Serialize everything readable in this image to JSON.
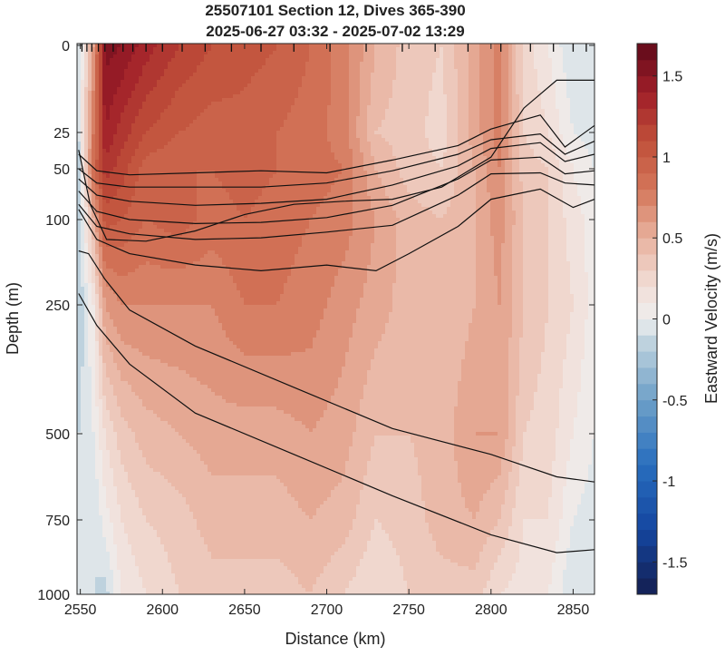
{
  "chart_data": {
    "type": "heatmap",
    "title": "25507101 Section 12, Dives 365-390",
    "subtitle": "2025-06-27 03:32 - 2025-07-02 13:29",
    "xlabel": "Distance (km)",
    "ylabel": "Depth (m)",
    "colorbar_label": "Eastward Velocity (m/s)",
    "xlim": [
      2548,
      2863
    ],
    "x_ticks": [
      2550,
      2600,
      2650,
      2700,
      2750,
      2800,
      2850
    ],
    "y_scale": "piecewise (stretched upper ocean)",
    "y_ticks": [
      0,
      25,
      50,
      100,
      250,
      500,
      750,
      1000
    ],
    "y_tick_labels": [
      "0",
      "25",
      "50",
      "100",
      "250",
      "500",
      "750",
      "1000"
    ],
    "clim": [
      -1.7,
      1.7
    ],
    "colorbar_ticks": [
      1.5,
      1,
      0.5,
      0,
      -0.5,
      -1,
      -1.5
    ],
    "colorbar_tick_labels": [
      "1.5",
      "1",
      "0.5",
      "0",
      "-0.5",
      "-1",
      "-1.5"
    ],
    "dive_marks_km": [
      2551,
      2554,
      2557,
      2561,
      2565,
      2570,
      2576,
      2582,
      2590,
      2600,
      2612,
      2626,
      2642,
      2660,
      2680,
      2702,
      2724,
      2746,
      2766,
      2786,
      2806,
      2824,
      2838,
      2850,
      2858
    ],
    "velocity_columns": [
      {
        "x": 2549,
        "depth": [
          0,
          25,
          50,
          100,
          250,
          500,
          750,
          1000
        ],
        "value": [
          -0.1,
          -0.1,
          -0.15,
          -0.2,
          -0.2,
          -0.1,
          -0.1,
          -0.1
        ]
      },
      {
        "x": 2558,
        "depth": [
          0,
          25,
          50,
          100,
          250,
          500,
          750,
          1000
        ],
        "value": [
          0.6,
          0.8,
          0.9,
          0.5,
          0.1,
          0.0,
          -0.1,
          -0.1
        ]
      },
      {
        "x": 2565,
        "depth": [
          0,
          25,
          50,
          100,
          250,
          500,
          750,
          1000
        ],
        "value": [
          1.55,
          1.4,
          1.25,
          1.05,
          0.6,
          0.2,
          0.05,
          -0.15
        ]
      },
      {
        "x": 2575,
        "depth": [
          0,
          25,
          50,
          100,
          250,
          500,
          750,
          1000
        ],
        "value": [
          1.5,
          1.25,
          1.15,
          1.0,
          0.7,
          0.35,
          0.2,
          0.1
        ]
      },
      {
        "x": 2590,
        "depth": [
          0,
          25,
          50,
          100,
          250,
          500,
          750,
          1000
        ],
        "value": [
          1.35,
          1.1,
          0.95,
          0.9,
          0.7,
          0.45,
          0.3,
          0.2
        ]
      },
      {
        "x": 2610,
        "depth": [
          0,
          25,
          50,
          100,
          250,
          500,
          750,
          1000
        ],
        "value": [
          1.2,
          1.0,
          0.9,
          0.95,
          0.7,
          0.5,
          0.35,
          0.3
        ]
      },
      {
        "x": 2630,
        "depth": [
          0,
          25,
          50,
          100,
          250,
          500,
          750,
          1000
        ],
        "value": [
          1.1,
          0.95,
          0.9,
          0.85,
          0.7,
          0.55,
          0.45,
          0.35
        ]
      },
      {
        "x": 2650,
        "depth": [
          0,
          25,
          50,
          100,
          250,
          500,
          750,
          1000
        ],
        "value": [
          1.05,
          0.95,
          0.95,
          0.9,
          0.8,
          0.55,
          0.45,
          0.35
        ]
      },
      {
        "x": 2670,
        "depth": [
          0,
          25,
          50,
          100,
          250,
          500,
          750,
          1000
        ],
        "value": [
          1.0,
          0.9,
          0.9,
          0.85,
          0.8,
          0.55,
          0.45,
          0.35
        ]
      },
      {
        "x": 2690,
        "depth": [
          0,
          25,
          50,
          100,
          250,
          500,
          750,
          1000
        ],
        "value": [
          0.9,
          0.85,
          0.85,
          0.8,
          0.75,
          0.6,
          0.5,
          0.4
        ]
      },
      {
        "x": 2710,
        "depth": [
          0,
          25,
          50,
          100,
          250,
          500,
          750,
          1000
        ],
        "value": [
          0.75,
          0.75,
          0.8,
          0.75,
          0.65,
          0.55,
          0.45,
          0.3
        ]
      },
      {
        "x": 2730,
        "depth": [
          0,
          25,
          50,
          100,
          250,
          500,
          750,
          1000
        ],
        "value": [
          0.5,
          0.4,
          0.5,
          0.6,
          0.55,
          0.4,
          0.3,
          0.2
        ]
      },
      {
        "x": 2750,
        "depth": [
          0,
          25,
          50,
          100,
          250,
          500,
          750,
          1000
        ],
        "value": [
          0.35,
          0.35,
          0.35,
          0.45,
          0.45,
          0.4,
          0.35,
          0.3
        ]
      },
      {
        "x": 2770,
        "depth": [
          0,
          25,
          50,
          100,
          250,
          500,
          750,
          1000
        ],
        "value": [
          0.3,
          0.25,
          0.3,
          0.4,
          0.4,
          0.45,
          0.45,
          0.35
        ]
      },
      {
        "x": 2790,
        "depth": [
          0,
          25,
          50,
          100,
          250,
          500,
          750,
          1000
        ],
        "value": [
          0.55,
          0.55,
          0.5,
          0.5,
          0.5,
          0.6,
          0.5,
          0.35
        ]
      },
      {
        "x": 2805,
        "depth": [
          0,
          25,
          50,
          100,
          250,
          500,
          750,
          1000
        ],
        "value": [
          0.75,
          0.75,
          0.7,
          0.65,
          0.6,
          0.6,
          0.4,
          0.2
        ]
      },
      {
        "x": 2820,
        "depth": [
          0,
          25,
          50,
          100,
          250,
          500,
          750,
          1000
        ],
        "value": [
          0.25,
          0.3,
          0.35,
          0.4,
          0.4,
          0.3,
          0.2,
          0.15
        ]
      },
      {
        "x": 2835,
        "depth": [
          0,
          25,
          50,
          100,
          250,
          500,
          750,
          1000
        ],
        "value": [
          0.1,
          0.2,
          0.3,
          0.3,
          0.3,
          0.25,
          0.2,
          0.1
        ]
      },
      {
        "x": 2850,
        "depth": [
          0,
          25,
          50,
          100,
          250,
          500,
          750,
          1000
        ],
        "value": [
          -0.1,
          0.0,
          0.1,
          0.15,
          0.2,
          0.1,
          0.0,
          -0.1
        ]
      },
      {
        "x": 2863,
        "depth": [
          0,
          25,
          50,
          100,
          250,
          500,
          750,
          1000
        ],
        "value": [
          -0.1,
          -0.05,
          0.0,
          0.05,
          0.05,
          0.0,
          -0.05,
          -0.1
        ]
      }
    ],
    "density_contours": [
      {
        "x": [
          2549,
          2556,
          2566,
          2590,
          2620,
          2650,
          2680,
          2710,
          2740,
          2770,
          2800,
          2820,
          2840,
          2850,
          2863
        ],
        "depth": [
          37,
          85,
          135,
          138,
          120,
          95,
          85,
          82,
          80,
          68,
          42,
          18,
          10,
          10,
          10
        ]
      },
      {
        "x": [
          2549,
          2560,
          2580,
          2620,
          2660,
          2700,
          2740,
          2780,
          2800,
          2830,
          2845,
          2863
        ],
        "depth": [
          40,
          52,
          56,
          54,
          52,
          54,
          44,
          34,
          24,
          20,
          35,
          23
        ]
      },
      {
        "x": [
          2549,
          2560,
          2580,
          2620,
          2660,
          2700,
          2740,
          2780,
          2800,
          2830,
          2845,
          2863
        ],
        "depth": [
          50,
          64,
          68,
          68,
          68,
          64,
          52,
          40,
          30,
          26,
          40,
          31
        ]
      },
      {
        "x": [
          2549,
          2560,
          2580,
          2620,
          2660,
          2700,
          2740,
          2780,
          2800,
          2830,
          2845,
          2863
        ],
        "depth": [
          60,
          76,
          82,
          86,
          84,
          80,
          66,
          48,
          36,
          32,
          45,
          40
        ]
      },
      {
        "x": [
          2549,
          2560,
          2580,
          2620,
          2660,
          2700,
          2740,
          2780,
          2800,
          2830,
          2845,
          2863
        ],
        "depth": [
          72,
          92,
          100,
          107,
          105,
          98,
          86,
          60,
          44,
          42,
          55,
          52
        ]
      },
      {
        "x": [
          2549,
          2560,
          2580,
          2620,
          2660,
          2700,
          2740,
          2780,
          2800,
          2830,
          2845,
          2863
        ],
        "depth": [
          85,
          112,
          125,
          135,
          132,
          122,
          110,
          76,
          55,
          54,
          64,
          66
        ]
      },
      {
        "x": [
          2549,
          2560,
          2580,
          2620,
          2660,
          2700,
          2730,
          2750,
          2780,
          2800,
          2830,
          2850,
          2863
        ],
        "depth": [
          90,
          135,
          160,
          180,
          190,
          180,
          190,
          160,
          112,
          80,
          70,
          88,
          80
        ]
      },
      {
        "x": [
          2549,
          2555,
          2565,
          2580,
          2620,
          2680,
          2740,
          2800,
          2840,
          2863
        ],
        "depth": [
          155,
          160,
          205,
          260,
          330,
          410,
          490,
          560,
          625,
          640
        ]
      },
      {
        "x": [
          2549,
          2560,
          2580,
          2620,
          2680,
          2740,
          2800,
          2840,
          2863
        ],
        "depth": [
          230,
          290,
          365,
          460,
          560,
          680,
          800,
          860,
          850
        ]
      }
    ]
  }
}
